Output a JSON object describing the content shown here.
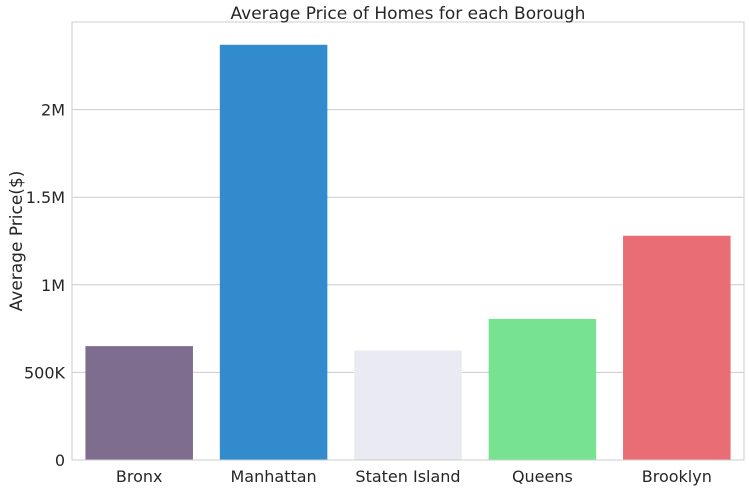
{
  "chart_data": {
    "type": "bar",
    "title": "Average Price of Homes for each Borough",
    "xlabel": "",
    "ylabel": "Average Price($)",
    "categories": [
      "Bronx",
      "Manhattan",
      "Staten Island",
      "Queens",
      "Brooklyn"
    ],
    "values": [
      650000,
      2370000,
      625000,
      805000,
      1280000
    ],
    "colors": [
      "#7f6d8f",
      "#328bcc",
      "#eaeaf2",
      "#77e391",
      "#e96d75"
    ],
    "ylim": [
      0,
      2500000
    ],
    "yticks": [
      0,
      500000,
      1000000,
      1500000,
      2000000
    ],
    "ytick_labels": [
      "0",
      "500K",
      "1M",
      "1.5M",
      "2M"
    ],
    "grid": "horizontal",
    "legend": "none"
  }
}
